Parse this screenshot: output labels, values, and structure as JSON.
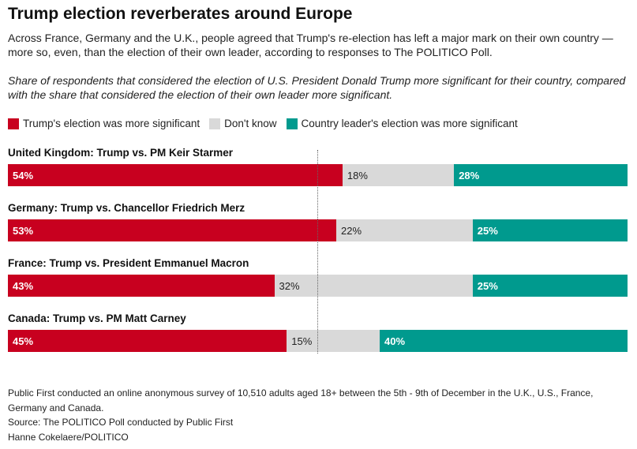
{
  "title": "Trump election reverberates around Europe",
  "subtitle": "Across France, Germany and the U.K., people agreed that Trump's re-election has left a major mark on their own country — more so, even, than the election of their own leader, according to responses to The POLITICO Poll.",
  "note": "Share of respondents that considered the election of U.S. President Donald Trump more significant for their country, compared with the share that considered the election of their own leader more significant.",
  "colors": {
    "trump": "#c8001f",
    "dk": "#d9d9d9",
    "leader": "#009a8e"
  },
  "chart_data": {
    "type": "bar",
    "stacked": true,
    "orientation": "horizontal",
    "xlim": [
      0,
      100
    ],
    "reference_line": 50,
    "legend": [
      "Trump's election was more significant",
      "Don't know",
      "Country leader's election was more significant"
    ],
    "categories": [
      "United Kingdom: Trump vs. PM Keir Starmer",
      "Germany: Trump vs. Chancellor Friedrich Merz",
      "France: Trump vs. President Emmanuel Macron",
      "Canada: Trump vs. PM Matt Carney"
    ],
    "series": [
      {
        "name": "Trump's election was more significant",
        "values": [
          54,
          53,
          43,
          45
        ]
      },
      {
        "name": "Don't know",
        "values": [
          18,
          22,
          32,
          15
        ]
      },
      {
        "name": "Country leader's election was more significant",
        "values": [
          28,
          25,
          25,
          40
        ]
      }
    ]
  },
  "footer": {
    "method": "Public First conducted an online anonymous survey of 10,510 adults aged 18+ between the 5th - 9th of December in the U.K., U.S., France, Germany and Canada.",
    "source": "Source: The POLITICO Poll conducted by Public First",
    "credit": "Hanne Cokelaere/POLITICO"
  }
}
